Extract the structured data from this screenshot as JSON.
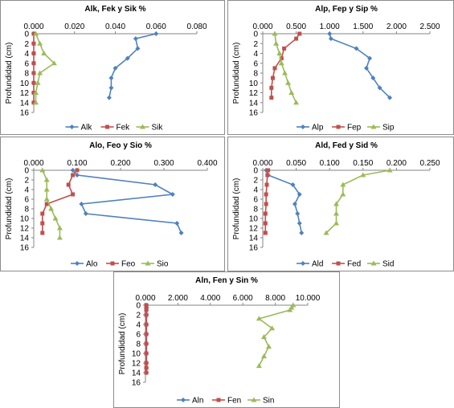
{
  "chart_data": [
    {
      "type": "line",
      "title": "Alk, Fek y Sik %",
      "ylabel": "Profundidad (cm)",
      "xlim": [
        0,
        0.08
      ],
      "ylim": [
        0,
        16
      ],
      "x_ticks": [
        "0.000",
        "0.020",
        "0.040",
        "0.060",
        "0.080"
      ],
      "y_ticks": [
        "0",
        "2",
        "4",
        "6",
        "8",
        "10",
        "12",
        "14",
        "16"
      ],
      "legend_position": "bottom",
      "series": [
        {
          "name": "Alk",
          "color": "#4f81bd",
          "marker": "diamond",
          "x": [
            0.06,
            0.05,
            0.051,
            0.046,
            0.04,
            0.038,
            0.038,
            0.037
          ],
          "y": [
            0,
            1,
            3,
            5,
            7,
            9,
            11,
            13
          ]
        },
        {
          "name": "Fek",
          "color": "#c0504d",
          "marker": "square",
          "x": [
            0.0,
            0.0,
            0.0,
            0.0,
            0.0,
            0.0,
            0.0,
            0.0
          ],
          "y": [
            0,
            2,
            4,
            6,
            8,
            10,
            12,
            14
          ]
        },
        {
          "name": "Sik",
          "color": "#9bbb59",
          "marker": "triangle",
          "x": [
            0.001,
            0.003,
            0.005,
            0.01,
            0.003,
            0.002,
            0.001,
            0.001
          ],
          "y": [
            0,
            2,
            4,
            6,
            8,
            10,
            12,
            14
          ]
        }
      ]
    },
    {
      "type": "line",
      "title": "Alp, Fep y Sip %",
      "ylabel": "Profundidad (cm)",
      "xlim": [
        0,
        2.5
      ],
      "ylim": [
        0,
        16
      ],
      "x_ticks": [
        "0.000",
        "0.500",
        "1.000",
        "1.500",
        "2.000",
        "2.500"
      ],
      "y_ticks": [
        "0",
        "2",
        "4",
        "6",
        "8",
        "10",
        "12",
        "14",
        "16"
      ],
      "legend_position": "bottom",
      "series": [
        {
          "name": "Alp",
          "color": "#4f81bd",
          "marker": "diamond",
          "x": [
            1.0,
            1.02,
            1.4,
            1.6,
            1.55,
            1.65,
            1.75,
            1.9
          ],
          "y": [
            0,
            1,
            3,
            5,
            7,
            9,
            11,
            13
          ]
        },
        {
          "name": "Fep",
          "color": "#c0504d",
          "marker": "square",
          "x": [
            0.55,
            0.5,
            0.32,
            0.28,
            0.18,
            0.15,
            0.13,
            0.13
          ],
          "y": [
            0,
            1,
            3,
            5,
            7,
            9,
            11,
            13
          ]
        },
        {
          "name": "Sip",
          "color": "#9bbb59",
          "marker": "triangle",
          "x": [
            0.18,
            0.2,
            0.25,
            0.28,
            0.33,
            0.38,
            0.43,
            0.5
          ],
          "y": [
            0,
            2,
            4,
            6,
            8,
            10,
            12,
            14
          ]
        }
      ]
    },
    {
      "type": "line",
      "title": "Alo, Feo y Sio %",
      "ylabel": "Profundidad (cm)",
      "xlim": [
        0,
        0.4
      ],
      "ylim": [
        0,
        16
      ],
      "x_ticks": [
        "0.000",
        "0.100",
        "0.200",
        "0.300",
        "0.400"
      ],
      "y_ticks": [
        "0",
        "2",
        "4",
        "6",
        "8",
        "10",
        "12",
        "14",
        "16"
      ],
      "legend_position": "bottom",
      "series": [
        {
          "name": "Alo",
          "color": "#4f81bd",
          "marker": "diamond",
          "x": [
            0.09,
            0.1,
            0.28,
            0.32,
            0.11,
            0.12,
            0.33,
            0.34
          ],
          "y": [
            0,
            1,
            3,
            5,
            7,
            9,
            11,
            13
          ]
        },
        {
          "name": "Feo",
          "color": "#c0504d",
          "marker": "square",
          "x": [
            0.1,
            0.09,
            0.08,
            0.09,
            0.03,
            0.02,
            0.02,
            0.02
          ],
          "y": [
            0,
            1,
            3,
            5,
            7,
            9,
            11,
            13
          ]
        },
        {
          "name": "Sio",
          "color": "#9bbb59",
          "marker": "triangle",
          "x": [
            0.02,
            0.03,
            0.03,
            0.03,
            0.04,
            0.05,
            0.06,
            0.06
          ],
          "y": [
            0,
            2,
            4,
            6,
            8,
            10,
            12,
            14
          ]
        }
      ]
    },
    {
      "type": "line",
      "title": "Ald, Fed y Sid %",
      "ylabel": "Profundidad (cm)",
      "xlim": [
        0,
        0.25
      ],
      "ylim": [
        0,
        16
      ],
      "x_ticks": [
        "0.000",
        "0.050",
        "0.100",
        "0.150",
        "0.200",
        "0.250"
      ],
      "y_ticks": [
        "0",
        "2",
        "4",
        "6",
        "8",
        "10",
        "12",
        "14",
        "16"
      ],
      "legend_position": "bottom",
      "series": [
        {
          "name": "Ald",
          "color": "#4f81bd",
          "marker": "diamond",
          "x": [
            0.005,
            0.008,
            0.045,
            0.055,
            0.048,
            0.052,
            0.055,
            0.058
          ],
          "y": [
            0,
            1,
            3,
            5,
            7,
            9,
            11,
            13
          ]
        },
        {
          "name": "Fed",
          "color": "#c0504d",
          "marker": "square",
          "x": [
            0.008,
            0.007,
            0.006,
            0.005,
            0.005,
            0.004,
            0.004,
            0.004
          ],
          "y": [
            0,
            1,
            3,
            5,
            7,
            9,
            11,
            13
          ]
        },
        {
          "name": "Sid",
          "color": "#9bbb59",
          "marker": "triangle",
          "x": [
            0.19,
            0.15,
            0.12,
            0.12,
            0.11,
            0.11,
            0.11,
            0.095
          ],
          "y": [
            0,
            1,
            3,
            5,
            7,
            9,
            11,
            13
          ]
        }
      ]
    },
    {
      "type": "line",
      "title": "Aln, Fen y Sin %",
      "ylabel": "Profundidad (cm)",
      "xlim": [
        0,
        10
      ],
      "ylim": [
        0,
        16
      ],
      "x_ticks": [
        "0.000",
        "2.000",
        "4.000",
        "6.000",
        "8.000",
        "10.000"
      ],
      "y_ticks": [
        "0",
        "2",
        "4",
        "6",
        "8",
        "10",
        "12",
        "14",
        "16"
      ],
      "legend_position": "bottom",
      "series": [
        {
          "name": "Aln",
          "color": "#4f81bd",
          "marker": "diamond",
          "x": [
            0.08,
            0.08,
            0.07,
            0.07,
            0.07,
            0.07,
            0.07,
            0.07,
            0.07,
            0.07,
            0.07
          ],
          "y": [
            0,
            0.5,
            1,
            2,
            4,
            6,
            8,
            10,
            12,
            13,
            14
          ]
        },
        {
          "name": "Fen",
          "color": "#c0504d",
          "marker": "square",
          "x": [
            0.05,
            0.05,
            0.05,
            0.05,
            0.05,
            0.05,
            0.05,
            0.05,
            0.05,
            0.05,
            0.05
          ],
          "y": [
            0,
            0.5,
            1,
            2,
            4,
            6,
            8,
            10,
            12,
            13,
            14
          ]
        },
        {
          "name": "Sin",
          "color": "#9bbb59",
          "marker": "triangle",
          "x": [
            9.1,
            9.0,
            8.9,
            7.0,
            7.8,
            7.3,
            7.6,
            7.3,
            7.0
          ],
          "y": [
            0,
            0.5,
            1,
            2.8,
            4.8,
            6.6,
            8.6,
            10.6,
            12.6
          ]
        }
      ]
    }
  ]
}
